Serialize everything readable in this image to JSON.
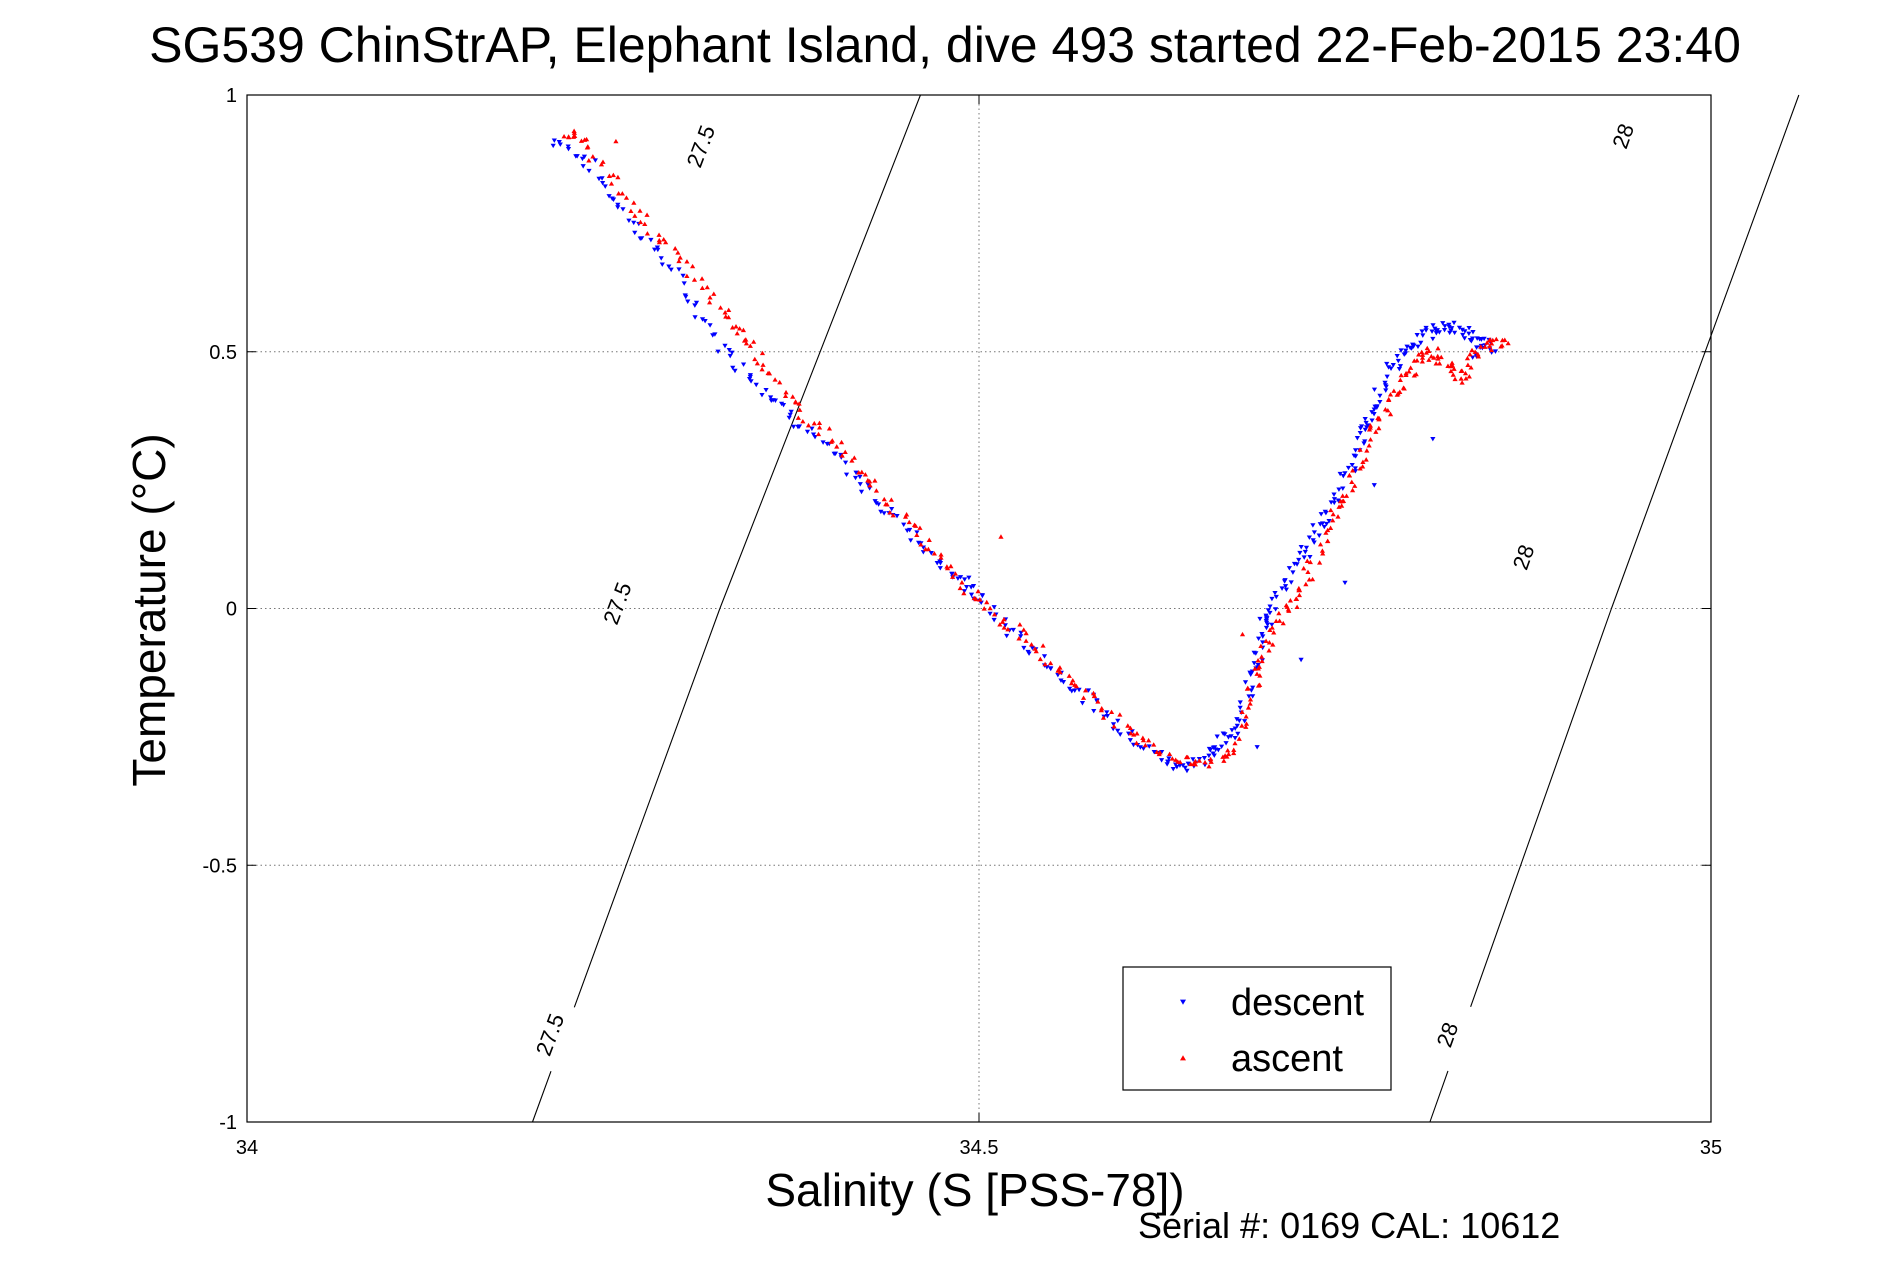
{
  "chart_data": {
    "type": "scatter",
    "title": "SG539 ChinStrAP, Elephant Island, dive 493 started 22-Feb-2015 23:40",
    "xlabel": "Salinity (S [PSS-78])",
    "ylabel": "Temperature (°C)",
    "xlim": [
      34,
      35
    ],
    "ylim": [
      -1,
      1
    ],
    "xticks": [
      34,
      34.5,
      35
    ],
    "xtick_labels": [
      "34",
      "34.5",
      "35"
    ],
    "yticks": [
      -1,
      -0.5,
      0,
      0.5,
      1
    ],
    "ytick_labels": [
      "-1",
      "-0.5",
      "0",
      "0.5",
      "1"
    ],
    "grid": true,
    "legend_position": "bottom-right",
    "footer": "Serial #: 0169 CAL: 10612",
    "isopycnals": [
      {
        "level": "27.5",
        "line": [
          [
            34.195,
            -1
          ],
          [
            34.323,
            0
          ],
          [
            34.46,
            1
          ]
        ],
        "labels": [
          [
            34.207,
            -0.83
          ],
          [
            34.253,
            0.01
          ],
          [
            34.31,
            0.9
          ]
        ]
      },
      {
        "level": "28",
        "line": [
          [
            34.808,
            -1
          ],
          [
            34.932,
            0
          ],
          [
            35.06,
            1
          ]
        ],
        "labels": [
          [
            34.82,
            -0.83
          ],
          [
            34.872,
            0.1
          ],
          [
            34.94,
            0.92
          ]
        ]
      }
    ],
    "series": [
      {
        "name": "descent",
        "color": "#0000ff",
        "marker": "triangle-down",
        "path": [
          [
            34.21,
            0.91
          ],
          [
            34.23,
            0.88
          ],
          [
            34.25,
            0.8
          ],
          [
            34.27,
            0.73
          ],
          [
            34.29,
            0.66
          ],
          [
            34.31,
            0.57
          ],
          [
            34.33,
            0.49
          ],
          [
            34.35,
            0.44
          ],
          [
            34.37,
            0.38
          ],
          [
            34.39,
            0.33
          ],
          [
            34.41,
            0.27
          ],
          [
            34.43,
            0.21
          ],
          [
            34.45,
            0.16
          ],
          [
            34.47,
            0.1
          ],
          [
            34.49,
            0.05
          ],
          [
            34.5,
            0.02
          ],
          [
            34.52,
            -0.04
          ],
          [
            34.54,
            -0.09
          ],
          [
            34.56,
            -0.14
          ],
          [
            34.58,
            -0.19
          ],
          [
            34.6,
            -0.24
          ],
          [
            34.62,
            -0.28
          ],
          [
            34.635,
            -0.31
          ],
          [
            34.65,
            -0.3
          ],
          [
            34.66,
            -0.28
          ],
          [
            34.67,
            -0.25
          ],
          [
            34.68,
            -0.22
          ],
          [
            34.685,
            -0.14
          ],
          [
            34.69,
            -0.09
          ],
          [
            34.695,
            -0.03
          ],
          [
            34.7,
            0.0
          ],
          [
            34.71,
            0.05
          ],
          [
            34.72,
            0.1
          ],
          [
            34.73,
            0.15
          ],
          [
            34.74,
            0.19
          ],
          [
            34.75,
            0.26
          ],
          [
            34.76,
            0.31
          ],
          [
            34.765,
            0.36
          ],
          [
            34.77,
            0.4
          ],
          [
            34.78,
            0.46
          ],
          [
            34.79,
            0.5
          ],
          [
            34.8,
            0.52
          ],
          [
            34.81,
            0.54
          ],
          [
            34.82,
            0.55
          ],
          [
            34.83,
            0.54
          ],
          [
            34.84,
            0.52
          ],
          [
            34.85,
            0.51
          ],
          [
            34.84,
            0.49
          ]
        ],
        "extra_points": [
          [
            34.81,
            0.33
          ],
          [
            34.72,
            -0.1
          ],
          [
            34.75,
            0.05
          ],
          [
            34.77,
            0.24
          ],
          [
            34.69,
            -0.27
          ]
        ]
      },
      {
        "name": "ascent",
        "color": "#ff0000",
        "marker": "triangle-up",
        "path": [
          [
            34.215,
            0.93
          ],
          [
            34.23,
            0.91
          ],
          [
            34.25,
            0.83
          ],
          [
            34.27,
            0.76
          ],
          [
            34.29,
            0.7
          ],
          [
            34.31,
            0.63
          ],
          [
            34.33,
            0.56
          ],
          [
            34.345,
            0.52
          ],
          [
            34.36,
            0.44
          ],
          [
            34.38,
            0.38
          ],
          [
            34.4,
            0.33
          ],
          [
            34.42,
            0.26
          ],
          [
            34.44,
            0.2
          ],
          [
            34.46,
            0.14
          ],
          [
            34.48,
            0.08
          ],
          [
            34.5,
            0.02
          ],
          [
            34.52,
            -0.03
          ],
          [
            34.54,
            -0.08
          ],
          [
            34.56,
            -0.13
          ],
          [
            34.58,
            -0.18
          ],
          [
            34.6,
            -0.23
          ],
          [
            34.62,
            -0.27
          ],
          [
            34.64,
            -0.3
          ],
          [
            34.66,
            -0.3
          ],
          [
            34.675,
            -0.27
          ],
          [
            34.685,
            -0.18
          ],
          [
            34.69,
            -0.11
          ],
          [
            34.7,
            -0.06
          ],
          [
            34.71,
            0.0
          ],
          [
            34.72,
            0.04
          ],
          [
            34.73,
            0.1
          ],
          [
            34.74,
            0.17
          ],
          [
            34.75,
            0.22
          ],
          [
            34.76,
            0.28
          ],
          [
            34.77,
            0.35
          ],
          [
            34.78,
            0.4
          ],
          [
            34.79,
            0.45
          ],
          [
            34.8,
            0.48
          ],
          [
            34.81,
            0.5
          ],
          [
            34.82,
            0.47
          ],
          [
            34.83,
            0.45
          ],
          [
            34.84,
            0.5
          ],
          [
            34.85,
            0.52
          ],
          [
            34.86,
            0.51
          ]
        ],
        "extra_points": [
          [
            34.252,
            0.91
          ],
          [
            34.515,
            0.14
          ],
          [
            34.79,
            0.43
          ],
          [
            34.83,
            0.44
          ],
          [
            34.68,
            -0.05
          ]
        ]
      }
    ]
  }
}
